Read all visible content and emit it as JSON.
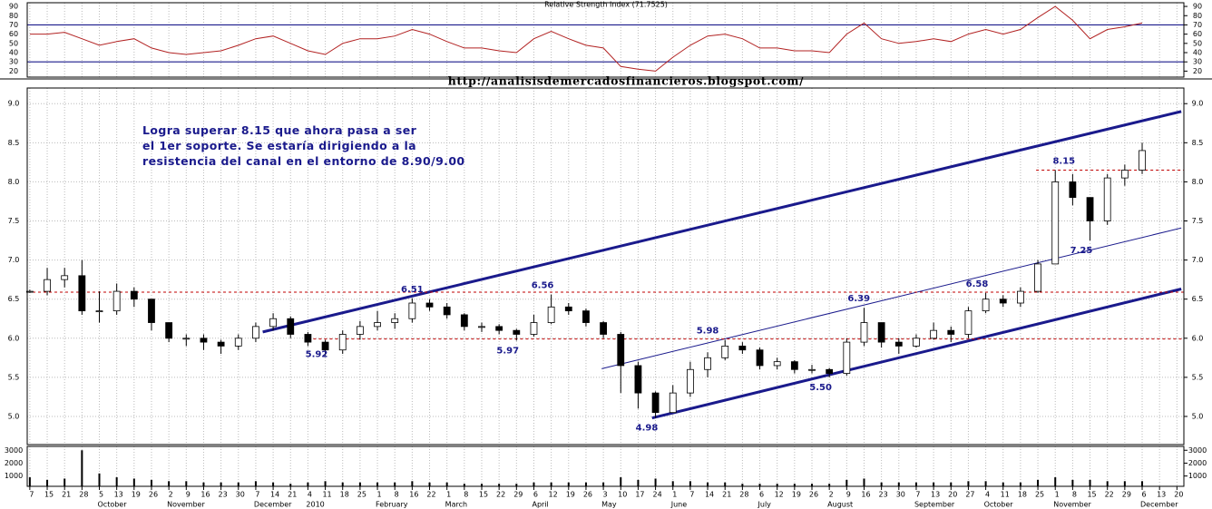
{
  "chart_data": {
    "type": "candlestick",
    "url": "http://analisisdemercadosfinancieros.blogspot.com/",
    "comment": [
      "Logra superar 8.15 que ahora pasa a ser",
      "el 1er soporte. Se estaría dirigiendo a la",
      "resistencia del canal en el entorno de 8.90/9.00"
    ],
    "categories": [
      "7",
      "15",
      "21",
      "28",
      "5",
      "13",
      "19",
      "26",
      "2",
      "9",
      "16",
      "23",
      "30",
      "7",
      "14",
      "21",
      "4",
      "11",
      "18",
      "25",
      "1",
      "8",
      "16",
      "22",
      "1",
      "8",
      "15",
      "22",
      "29",
      "6",
      "12",
      "19",
      "26",
      "3",
      "10",
      "17",
      "24",
      "1",
      "7",
      "14",
      "21",
      "28",
      "6",
      "12",
      "19",
      "26",
      "2",
      "9",
      "16",
      "23",
      "30",
      "7",
      "13",
      "20",
      "27",
      "4",
      "11",
      "18",
      "25",
      "1",
      "8",
      "15",
      "22",
      "29",
      "6",
      "13",
      "20"
    ],
    "months": [
      {
        "label": "October",
        "at": 4
      },
      {
        "label": "November",
        "at": 8
      },
      {
        "label": "December",
        "at": 13
      },
      {
        "label": "2010",
        "at": 16
      },
      {
        "label": "February",
        "at": 20
      },
      {
        "label": "March",
        "at": 24
      },
      {
        "label": "April",
        "at": 29
      },
      {
        "label": "May",
        "at": 33
      },
      {
        "label": "June",
        "at": 37
      },
      {
        "label": "July",
        "at": 42
      },
      {
        "label": "August",
        "at": 46
      },
      {
        "label": "September",
        "at": 51
      },
      {
        "label": "October",
        "at": 55
      },
      {
        "label": "November",
        "at": 59
      },
      {
        "label": "December",
        "at": 64
      }
    ],
    "xlim": [
      -0.15,
      66.4
    ],
    "price": {
      "ylim": [
        4.64,
        9.2
      ],
      "yticks": [
        {
          "value": 5,
          "label": "5.0"
        },
        5.5,
        {
          "value": 6,
          "label": "6.0"
        },
        6.5,
        {
          "value": 7,
          "label": "7.0"
        },
        7.5,
        {
          "value": 8,
          "label": "8.0"
        },
        8.5,
        {
          "value": 9,
          "label": "9.0"
        }
      ],
      "grid": true,
      "open": [
        6.6,
        6.6,
        6.75,
        6.8,
        6.35,
        6.35,
        6.6,
        6.5,
        6.2,
        6.0,
        6.0,
        5.95,
        5.9,
        6.0,
        6.15,
        6.25,
        6.05,
        5.95,
        5.85,
        6.05,
        6.15,
        6.2,
        6.25,
        6.45,
        6.4,
        6.3,
        6.15,
        6.15,
        6.1,
        6.05,
        6.2,
        6.4,
        6.35,
        6.2,
        6.05,
        5.65,
        5.3,
        5.05,
        5.3,
        5.6,
        5.75,
        5.9,
        5.85,
        5.65,
        5.7,
        5.6,
        5.6,
        5.55,
        5.95,
        6.2,
        5.95,
        5.9,
        6.0,
        6.1,
        6.05,
        6.35,
        6.5,
        6.45,
        6.6,
        6.95,
        8.0,
        7.8,
        7.5,
        8.05,
        8.15
      ],
      "high": [
        6.62,
        6.9,
        6.9,
        7.0,
        6.6,
        6.7,
        6.65,
        6.5,
        6.2,
        6.05,
        6.05,
        5.98,
        6.05,
        6.2,
        6.32,
        6.28,
        6.08,
        5.98,
        6.1,
        6.22,
        6.35,
        6.32,
        6.51,
        6.5,
        6.45,
        6.32,
        6.2,
        6.18,
        6.12,
        6.3,
        6.56,
        6.45,
        6.38,
        6.22,
        6.08,
        5.7,
        5.32,
        5.4,
        5.7,
        5.82,
        5.98,
        5.95,
        5.88,
        5.75,
        5.72,
        5.66,
        5.62,
        6.0,
        6.39,
        6.2,
        6.0,
        6.05,
        6.2,
        6.15,
        6.4,
        6.58,
        6.55,
        6.65,
        7.0,
        8.15,
        8.1,
        7.8,
        8.1,
        8.22,
        8.5
      ],
      "low": [
        6.58,
        6.55,
        6.65,
        6.3,
        6.2,
        6.3,
        6.4,
        6.1,
        5.95,
        5.9,
        5.85,
        5.8,
        5.85,
        5.95,
        6.1,
        6.0,
        5.9,
        5.78,
        5.8,
        5.98,
        6.1,
        6.12,
        6.2,
        6.35,
        6.25,
        6.1,
        6.08,
        6.05,
        5.97,
        6.02,
        6.18,
        6.3,
        6.15,
        6.0,
        5.3,
        5.1,
        4.98,
        5.05,
        5.25,
        5.5,
        5.72,
        5.8,
        5.6,
        5.6,
        5.55,
        5.55,
        5.5,
        5.52,
        5.9,
        5.88,
        5.8,
        5.88,
        5.98,
        5.95,
        6.0,
        6.32,
        6.4,
        6.4,
        6.58,
        6.95,
        7.7,
        7.25,
        7.45,
        7.95,
        8.1
      ],
      "close": [
        6.6,
        6.75,
        6.8,
        6.35,
        6.35,
        6.6,
        6.5,
        6.2,
        6.0,
        6.0,
        5.95,
        5.9,
        6.0,
        6.15,
        6.25,
        6.05,
        5.95,
        5.85,
        6.05,
        6.15,
        6.2,
        6.25,
        6.45,
        6.4,
        6.3,
        6.15,
        6.15,
        6.1,
        6.05,
        6.2,
        6.4,
        6.35,
        6.2,
        6.05,
        5.65,
        5.3,
        5.05,
        5.3,
        5.6,
        5.75,
        5.9,
        5.85,
        5.65,
        5.7,
        5.6,
        5.6,
        5.55,
        5.95,
        6.2,
        5.95,
        5.9,
        6.0,
        6.1,
        6.05,
        6.35,
        6.5,
        6.45,
        6.6,
        6.95,
        8.0,
        7.8,
        7.5,
        8.05,
        8.15,
        8.4
      ],
      "lines": [
        {
          "x": [
            13.4,
            66.25
          ],
          "y": [
            6.08,
            8.9
          ],
          "color": "#1a1a8c",
          "width": 3,
          "dash": false
        },
        {
          "x": [
            35.8,
            66.25
          ],
          "y": [
            4.98,
            6.63
          ],
          "color": "#1a1a8c",
          "width": 3,
          "dash": false
        },
        {
          "x": [
            32.9,
            66.25
          ],
          "y": [
            5.61,
            7.41
          ],
          "color": "#1a1a8c",
          "width": 1,
          "dash": false
        },
        {
          "x": [
            -0.15,
            66.4
          ],
          "y": [
            6.59,
            6.59
          ],
          "color": "#c00000",
          "width": 1,
          "dash": true
        },
        {
          "x": [
            16,
            66.4
          ],
          "y": [
            5.99,
            5.99
          ],
          "color": "#c00000",
          "width": 1,
          "dash": true
        },
        {
          "x": [
            57.9,
            66.4
          ],
          "y": [
            8.15,
            8.15
          ],
          "color": "#c00000",
          "width": 1,
          "dash": true
        }
      ],
      "annotations": [
        {
          "label": "6.51",
          "value": 6.51,
          "at": 22,
          "side": "above"
        },
        {
          "label": "5.92",
          "value": 5.92,
          "at": 16.5,
          "side": "below"
        },
        {
          "label": "6.56",
          "value": 6.56,
          "at": 29.5,
          "side": "above"
        },
        {
          "label": "5.97",
          "value": 5.97,
          "at": 27.5,
          "side": "below"
        },
        {
          "label": "5.98",
          "value": 5.98,
          "at": 39,
          "side": "above"
        },
        {
          "label": "4.98",
          "value": 4.98,
          "at": 35.5,
          "side": "below"
        },
        {
          "label": "5.50",
          "value": 5.5,
          "at": 45.5,
          "side": "below"
        },
        {
          "label": "6.39",
          "value": 6.39,
          "at": 47.7,
          "side": "above"
        },
        {
          "label": "6.58",
          "value": 6.58,
          "at": 54.5,
          "side": "above"
        },
        {
          "label": "8.15",
          "value": 8.15,
          "at": 59.5,
          "side": "above"
        },
        {
          "label": "7.25",
          "value": 7.25,
          "at": 60.5,
          "side": "below"
        }
      ]
    },
    "rsi": {
      "title": "Relative Strength Index (71.7525)",
      "color": "#b22222",
      "ylim": [
        13.5,
        94
      ],
      "yticks": [
        20,
        30,
        40,
        50,
        60,
        70,
        80,
        90
      ],
      "levels": [
        70,
        30
      ],
      "values": [
        60,
        60,
        62,
        55,
        48,
        52,
        55,
        45,
        40,
        38,
        40,
        42,
        48,
        55,
        58,
        50,
        42,
        38,
        50,
        55,
        55,
        58,
        65,
        60,
        52,
        45,
        45,
        42,
        40,
        55,
        63,
        55,
        48,
        45,
        25,
        22,
        20,
        35,
        48,
        58,
        60,
        55,
        45,
        45,
        42,
        42,
        40,
        60,
        72,
        55,
        50,
        52,
        55,
        52,
        60,
        65,
        60,
        65,
        78,
        90,
        75,
        55,
        65,
        68,
        72
      ]
    },
    "volume": {
      "ylim": [
        200,
        3300
      ],
      "yticks": [
        1000,
        2000,
        3000
      ],
      "values": [
        900,
        700,
        800,
        3000,
        1200,
        900,
        800,
        700,
        600,
        600,
        500,
        500,
        500,
        600,
        500,
        400,
        500,
        600,
        500,
        500,
        500,
        500,
        600,
        500,
        500,
        400,
        400,
        400,
        400,
        500,
        500,
        500,
        500,
        500,
        900,
        700,
        800,
        600,
        600,
        500,
        500,
        400,
        400,
        400,
        400,
        400,
        400,
        700,
        800,
        500,
        500,
        500,
        500,
        500,
        600,
        600,
        500,
        500,
        700,
        900,
        700,
        700,
        600,
        600,
        600
      ]
    }
  }
}
